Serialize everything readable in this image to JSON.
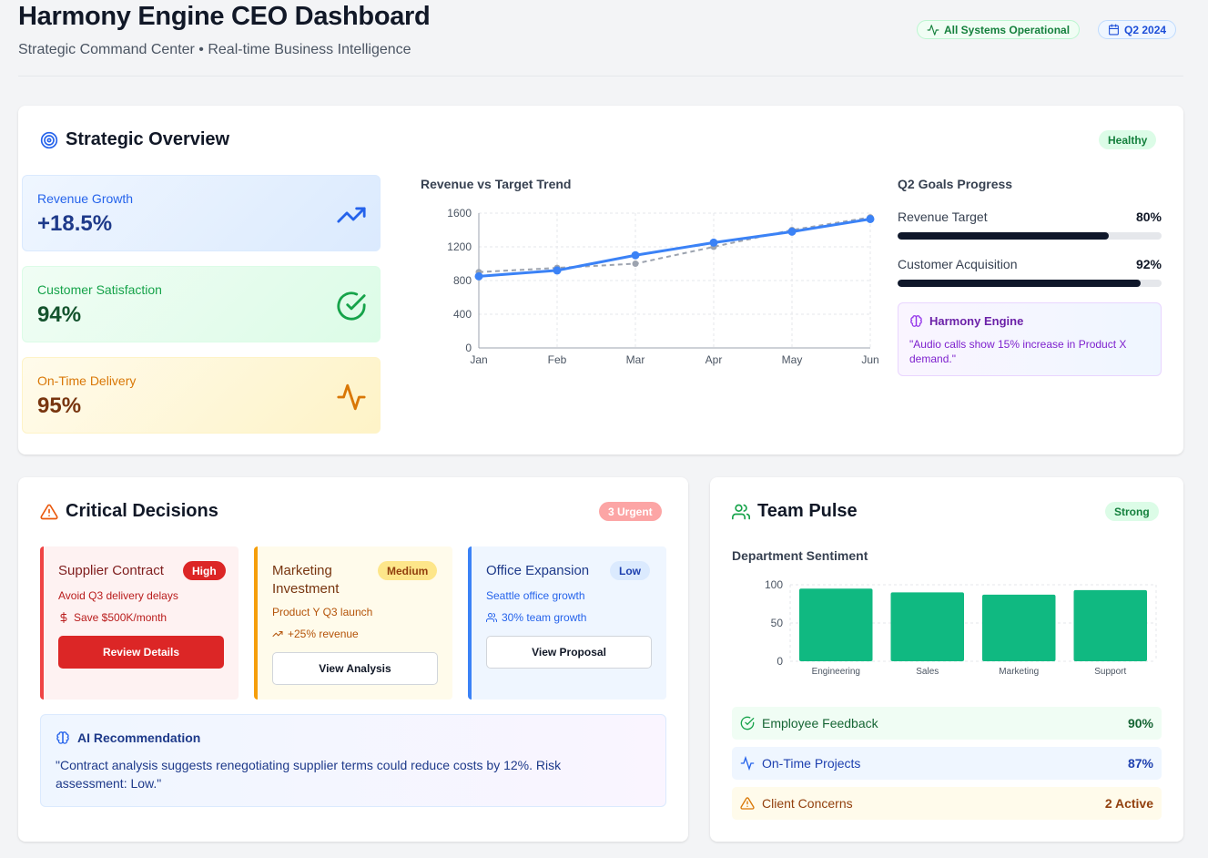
{
  "header": {
    "title": "Harmony Engine CEO Dashboard",
    "subtitle": "Strategic Command Center • Real-time Business Intelligence",
    "status_label": "All Systems Operational",
    "period_label": "Q2 2024"
  },
  "overview": {
    "title": "Strategic Overview",
    "status_badge": "Healthy",
    "kpis": [
      {
        "label": "Revenue Growth",
        "value": "+18.5%",
        "icon": "trending-up-icon"
      },
      {
        "label": "Customer Satisfaction",
        "value": "94%",
        "icon": "check-circle-icon"
      },
      {
        "label": "On-Time Delivery",
        "value": "95%",
        "icon": "activity-icon"
      }
    ],
    "trend_title": "Revenue vs Target Trend",
    "goals_title": "Q2 Goals Progress",
    "goals": [
      {
        "label": "Revenue Target",
        "value_text": "80%",
        "progress": 0.8
      },
      {
        "label": "Customer Acquisition",
        "value_text": "92%",
        "progress": 0.92
      }
    ],
    "insight": {
      "title": "Harmony Engine",
      "text": "\"Audio calls show 15% increase in Product X demand.\""
    }
  },
  "decisions": {
    "title": "Critical Decisions",
    "urgent_badge": "3 Urgent",
    "items": [
      {
        "title": "Supplier Contract",
        "priority": "High",
        "detail": "Avoid Q3 delivery delays",
        "impact": "Save $500K/month",
        "impact_icon": "dollar-icon",
        "button": "Review Details"
      },
      {
        "title": "Marketing Investment",
        "priority": "Medium",
        "detail": "Product Y Q3 launch",
        "impact": "+25% revenue",
        "impact_icon": "trending-up-icon",
        "button": "View Analysis"
      },
      {
        "title": "Office Expansion",
        "priority": "Low",
        "detail": "Seattle office growth",
        "impact": "30% team growth",
        "impact_icon": "users-icon",
        "button": "View Proposal"
      }
    ],
    "ai": {
      "title": "AI Recommendation",
      "text": "\"Contract analysis suggests renegotiating supplier terms could reduce costs by 12%. Risk assessment: Low.\""
    }
  },
  "team": {
    "title": "Team Pulse",
    "status_badge": "Strong",
    "sentiment_title": "Department Sentiment",
    "metrics": [
      {
        "label": "Employee Feedback",
        "value": "90%",
        "icon": "check-circle-icon"
      },
      {
        "label": "On-Time Projects",
        "value": "87%",
        "icon": "activity-icon"
      },
      {
        "label": "Client Concerns",
        "value": "2 Active",
        "icon": "alert-triangle-icon"
      }
    ]
  },
  "chart_data": [
    {
      "type": "line",
      "title": "Revenue vs Target Trend",
      "x": [
        "Jan",
        "Feb",
        "Mar",
        "Apr",
        "May",
        "Jun"
      ],
      "series": [
        {
          "values": [
            850,
            920,
            1100,
            1250,
            1380,
            1530
          ],
          "color": "#3b82f6",
          "style": "solid"
        },
        {
          "values": [
            900,
            950,
            1000,
            1200,
            1400,
            1550
          ],
          "color": "#9ca3af",
          "style": "dashed"
        }
      ],
      "ylim": [
        0,
        1600
      ],
      "yticks": [
        0,
        400,
        800,
        1200,
        1600
      ],
      "grid": true
    },
    {
      "type": "bar",
      "title": "Department Sentiment",
      "categories": [
        "Engineering",
        "Sales",
        "Marketing",
        "Support"
      ],
      "values": [
        95,
        90,
        87,
        93
      ],
      "color": "#10b981",
      "ylim": [
        0,
        100
      ],
      "yticks": [
        0,
        50,
        100
      ],
      "grid": true
    }
  ],
  "colors": {
    "accent_blue": "#3b82f6",
    "success_green": "#10b981",
    "danger_red": "#dc2626",
    "warning_amber": "#f59e0b"
  }
}
